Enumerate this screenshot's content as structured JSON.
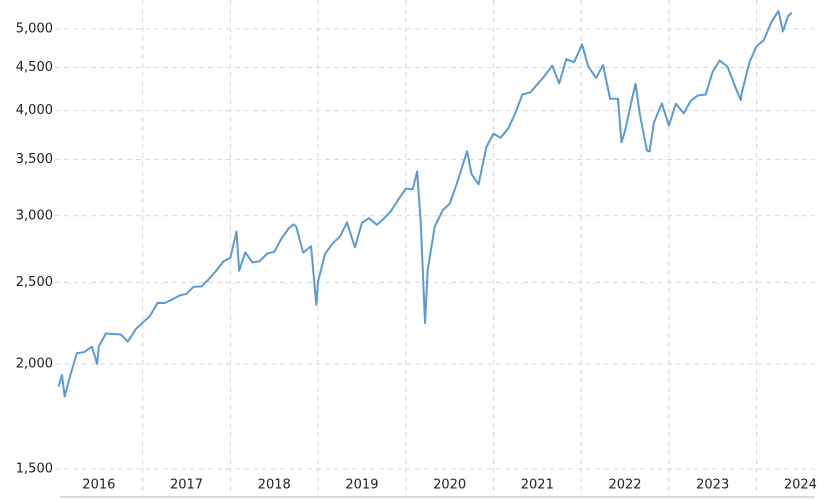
{
  "chart_data": {
    "type": "line",
    "log_scale": true,
    "grid": true,
    "xlim": [
      2016.0,
      2024.45
    ],
    "ylim": [
      1476,
      5340
    ],
    "xticks": [
      2016,
      2017,
      2018,
      2019,
      2020,
      2021,
      2022,
      2023,
      2024
    ],
    "yticks": [
      {
        "value": 1500,
        "label": "1,500"
      },
      {
        "value": 2000,
        "label": "2,000"
      },
      {
        "value": 2500,
        "label": "2,500"
      },
      {
        "value": 3000,
        "label": "3,000"
      },
      {
        "value": 3500,
        "label": "3,500"
      },
      {
        "value": 4000,
        "label": "4,000"
      },
      {
        "value": 4500,
        "label": "4,500"
      },
      {
        "value": 5000,
        "label": "5,000"
      }
    ],
    "color": "#5b9bd5",
    "x": [
      2016.04,
      2016.08,
      2016.11,
      2016.17,
      2016.25,
      2016.33,
      2016.42,
      2016.48,
      2016.5,
      2016.58,
      2016.67,
      2016.75,
      2016.83,
      2016.92,
      2017.0,
      2017.08,
      2017.17,
      2017.25,
      2017.33,
      2017.42,
      2017.5,
      2017.58,
      2017.67,
      2017.75,
      2017.83,
      2017.92,
      2018.0,
      2018.07,
      2018.1,
      2018.17,
      2018.25,
      2018.33,
      2018.42,
      2018.5,
      2018.58,
      2018.67,
      2018.72,
      2018.75,
      2018.83,
      2018.92,
      2018.98,
      2019.0,
      2019.08,
      2019.17,
      2019.25,
      2019.33,
      2019.42,
      2019.5,
      2019.58,
      2019.67,
      2019.75,
      2019.83,
      2019.92,
      2020.0,
      2020.08,
      2020.13,
      2020.17,
      2020.22,
      2020.25,
      2020.33,
      2020.42,
      2020.5,
      2020.58,
      2020.67,
      2020.7,
      2020.75,
      2020.83,
      2020.92,
      2021.0,
      2021.08,
      2021.17,
      2021.25,
      2021.33,
      2021.42,
      2021.5,
      2021.58,
      2021.67,
      2021.75,
      2021.83,
      2021.92,
      2022.0,
      2022.01,
      2022.08,
      2022.17,
      2022.25,
      2022.33,
      2022.42,
      2022.46,
      2022.5,
      2022.58,
      2022.62,
      2022.67,
      2022.75,
      2022.78,
      2022.83,
      2022.92,
      2023.0,
      2023.08,
      2023.17,
      2023.25,
      2023.33,
      2023.42,
      2023.5,
      2023.58,
      2023.67,
      2023.75,
      2023.82,
      2023.83,
      2023.92,
      2024.0,
      2024.08,
      2024.17,
      2024.25,
      2024.3,
      2024.36,
      2024.4
    ],
    "values": [
      1880,
      1940,
      1829,
      1932,
      2060,
      2065,
      2097,
      2000,
      2099,
      2174,
      2171,
      2168,
      2126,
      2199,
      2239,
      2279,
      2364,
      2363,
      2384,
      2412,
      2423,
      2470,
      2472,
      2519,
      2575,
      2648,
      2674,
      2873,
      2581,
      2714,
      2641,
      2648,
      2705,
      2718,
      2816,
      2902,
      2930,
      2914,
      2712,
      2760,
      2351,
      2507,
      2704,
      2784,
      2834,
      2946,
      2752,
      2942,
      2980,
      2926,
      2977,
      3038,
      3141,
      3231,
      3226,
      3386,
      2954,
      2237,
      2585,
      2912,
      3044,
      3100,
      3271,
      3500,
      3580,
      3363,
      3270,
      3622,
      3756,
      3714,
      3811,
      3973,
      4181,
      4204,
      4298,
      4395,
      4523,
      4308,
      4605,
      4567,
      4766,
      4796,
      4516,
      4374,
      4530,
      4132,
      4132,
      3667,
      3785,
      4130,
      4305,
      3955,
      3586,
      3577,
      3872,
      4080,
      3840,
      4077,
      3970,
      4109,
      4169,
      4180,
      4450,
      4589,
      4508,
      4288,
      4117,
      4194,
      4568,
      4770,
      4846,
      5096,
      5254,
      4967,
      5180,
      5230
    ]
  }
}
